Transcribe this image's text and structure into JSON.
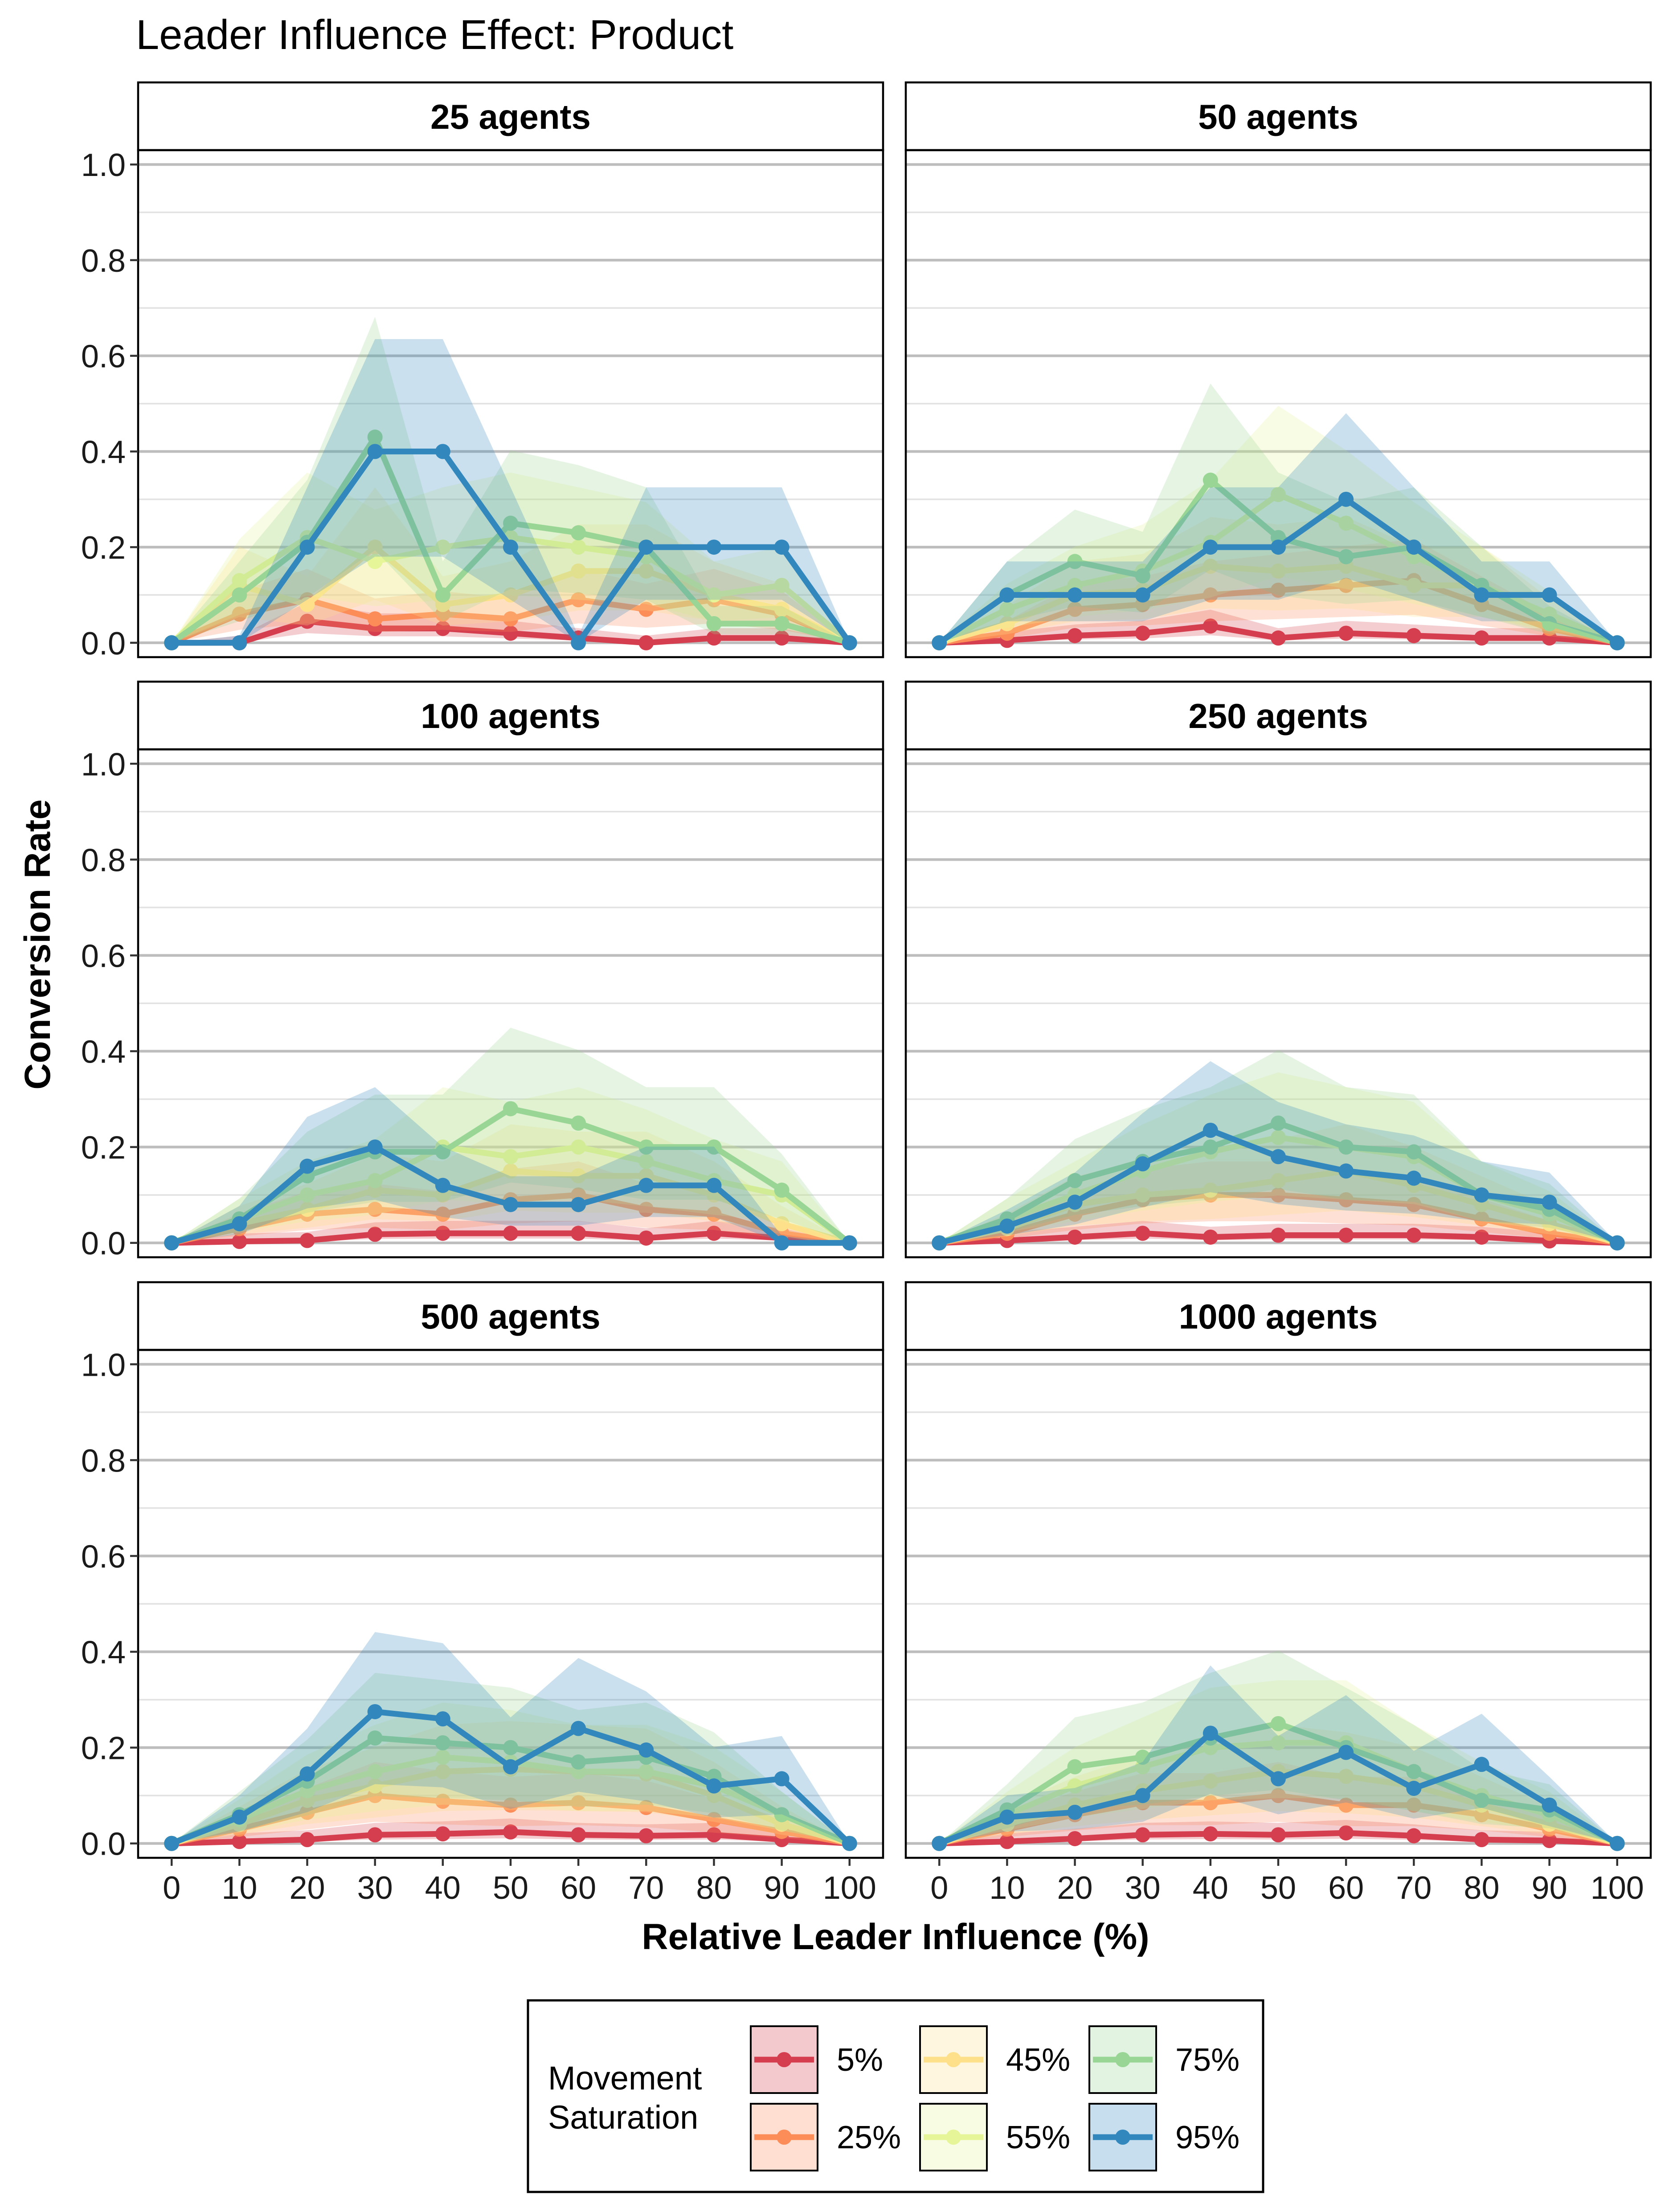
{
  "title": "Leader Influence Effect: Product",
  "xlabel": "Relative Leader Influence (%)",
  "ylabel": "Conversion Rate",
  "legend": {
    "title_line1": "Movement",
    "title_line2": "Saturation",
    "placement": "bottom"
  },
  "chart_data": {
    "type": "line",
    "title": "Leader Influence Effect: Product",
    "xlabel": "Relative Leader Influence (%)",
    "ylabel": "Conversion Rate",
    "x": [
      0,
      10,
      20,
      30,
      40,
      50,
      60,
      70,
      80,
      90,
      100
    ],
    "xticks": [
      "0",
      "10",
      "20",
      "30",
      "40",
      "50",
      "60",
      "70",
      "80",
      "90",
      "100"
    ],
    "ylim": [
      -0.03,
      1.03
    ],
    "yticks": [
      "0.0",
      "0.2",
      "0.4",
      "0.6",
      "0.8",
      "1.0"
    ],
    "grid": true,
    "legend_position": "bottom",
    "series_meta": [
      {
        "name": "5%",
        "color": "#d53e4f"
      },
      {
        "name": "25%",
        "color": "#fc8d59"
      },
      {
        "name": "45%",
        "color": "#fee08b"
      },
      {
        "name": "55%",
        "color": "#e6f598"
      },
      {
        "name": "75%",
        "color": "#99d594"
      },
      {
        "name": "95%",
        "color": "#3288bd"
      }
    ],
    "panels": [
      {
        "label": "25 agents",
        "series": [
          {
            "name": "5%",
            "values": [
              0,
              0,
              0.045,
              0.03,
              0.03,
              0.02,
              0.01,
              0,
              0.01,
              0.01,
              0
            ]
          },
          {
            "name": "25%",
            "values": [
              0,
              0.06,
              0.09,
              0.05,
              0.06,
              0.05,
              0.09,
              0.07,
              0.09,
              0.06,
              0
            ]
          },
          {
            "name": "45%",
            "values": [
              0,
              0.12,
              0.08,
              0.2,
              0.08,
              0.1,
              0.15,
              0.15,
              0.1,
              0.07,
              0
            ]
          },
          {
            "name": "55%",
            "values": [
              0,
              0.13,
              0.22,
              0.17,
              0.2,
              0.22,
              0.2,
              0.18,
              0.1,
              0.12,
              0
            ]
          },
          {
            "name": "75%",
            "values": [
              0,
              0.1,
              0.21,
              0.43,
              0.1,
              0.25,
              0.23,
              0.2,
              0.04,
              0.04,
              0
            ]
          },
          {
            "name": "95%",
            "values": [
              0,
              0,
              0.2,
              0.4,
              0.4,
              0.2,
              0,
              0.2,
              0.2,
              0.2,
              0
            ]
          }
        ]
      },
      {
        "label": "50 agents",
        "series": [
          {
            "name": "5%",
            "values": [
              0,
              0.005,
              0.015,
              0.02,
              0.035,
              0.01,
              0.02,
              0.015,
              0.01,
              0.01,
              0
            ]
          },
          {
            "name": "25%",
            "values": [
              0,
              0.02,
              0.07,
              0.08,
              0.1,
              0.11,
              0.12,
              0.13,
              0.08,
              0.03,
              0
            ]
          },
          {
            "name": "45%",
            "values": [
              0,
              0.04,
              0.1,
              0.11,
              0.16,
              0.15,
              0.16,
              0.12,
              0.12,
              0.05,
              0
            ]
          },
          {
            "name": "55%",
            "values": [
              0,
              0.07,
              0.12,
              0.15,
              0.21,
              0.31,
              0.25,
              0.18,
              0.12,
              0.06,
              0
            ]
          },
          {
            "name": "75%",
            "values": [
              0,
              0.1,
              0.17,
              0.14,
              0.34,
              0.22,
              0.18,
              0.2,
              0.12,
              0.04,
              0
            ]
          },
          {
            "name": "95%",
            "values": [
              0,
              0.1,
              0.1,
              0.1,
              0.2,
              0.2,
              0.3,
              0.2,
              0.1,
              0.1,
              0
            ]
          }
        ]
      },
      {
        "label": "100 agents",
        "series": [
          {
            "name": "5%",
            "values": [
              0,
              0.003,
              0.005,
              0.018,
              0.02,
              0.02,
              0.02,
              0.01,
              0.02,
              0.01,
              0
            ]
          },
          {
            "name": "25%",
            "values": [
              0,
              0.03,
              0.06,
              0.07,
              0.06,
              0.09,
              0.1,
              0.07,
              0.06,
              0.02,
              0
            ]
          },
          {
            "name": "45%",
            "values": [
              0,
              0.04,
              0.07,
              0.11,
              0.1,
              0.15,
              0.14,
              0.14,
              0.1,
              0.04,
              0
            ]
          },
          {
            "name": "55%",
            "values": [
              0,
              0.05,
              0.1,
              0.13,
              0.2,
              0.18,
              0.2,
              0.17,
              0.13,
              0.1,
              0
            ]
          },
          {
            "name": "75%",
            "values": [
              0,
              0.05,
              0.14,
              0.19,
              0.19,
              0.28,
              0.25,
              0.2,
              0.2,
              0.11,
              0
            ]
          },
          {
            "name": "95%",
            "values": [
              0,
              0.04,
              0.16,
              0.2,
              0.12,
              0.08,
              0.08,
              0.12,
              0.12,
              0,
              0
            ]
          }
        ]
      },
      {
        "label": "250 agents",
        "series": [
          {
            "name": "5%",
            "values": [
              0,
              0.005,
              0.012,
              0.02,
              0.012,
              0.016,
              0.016,
              0.016,
              0.012,
              0.004,
              0
            ]
          },
          {
            "name": "25%",
            "values": [
              0,
              0.02,
              0.06,
              0.09,
              0.1,
              0.1,
              0.09,
              0.08,
              0.05,
              0.02,
              0
            ]
          },
          {
            "name": "45%",
            "values": [
              0,
              0.03,
              0.08,
              0.1,
              0.11,
              0.13,
              0.15,
              0.12,
              0.08,
              0.04,
              0
            ]
          },
          {
            "name": "55%",
            "values": [
              0,
              0.05,
              0.1,
              0.15,
              0.19,
              0.22,
              0.2,
              0.18,
              0.1,
              0.06,
              0
            ]
          },
          {
            "name": "75%",
            "values": [
              0,
              0.05,
              0.13,
              0.17,
              0.2,
              0.25,
              0.2,
              0.19,
              0.1,
              0.07,
              0
            ]
          },
          {
            "name": "95%",
            "values": [
              0,
              0.035,
              0.085,
              0.165,
              0.235,
              0.18,
              0.15,
              0.135,
              0.1,
              0.085,
              0
            ]
          }
        ]
      },
      {
        "label": "500 agents",
        "series": [
          {
            "name": "5%",
            "values": [
              0,
              0.004,
              0.008,
              0.018,
              0.02,
              0.024,
              0.018,
              0.016,
              0.018,
              0.008,
              0
            ]
          },
          {
            "name": "25%",
            "values": [
              0,
              0.03,
              0.065,
              0.1,
              0.088,
              0.08,
              0.085,
              0.075,
              0.05,
              0.025,
              0
            ]
          },
          {
            "name": "45%",
            "values": [
              0,
              0.04,
              0.09,
              0.12,
              0.15,
              0.155,
              0.15,
              0.145,
              0.1,
              0.04,
              0
            ]
          },
          {
            "name": "55%",
            "values": [
              0,
              0.05,
              0.11,
              0.15,
              0.18,
              0.17,
              0.15,
              0.15,
              0.12,
              0.06,
              0
            ]
          },
          {
            "name": "75%",
            "values": [
              0,
              0.06,
              0.13,
              0.22,
              0.21,
              0.2,
              0.17,
              0.18,
              0.14,
              0.06,
              0
            ]
          },
          {
            "name": "95%",
            "values": [
              0,
              0.055,
              0.145,
              0.275,
              0.26,
              0.16,
              0.24,
              0.195,
              0.12,
              0.135,
              0
            ]
          }
        ]
      },
      {
        "label": "1000 agents",
        "series": [
          {
            "name": "5%",
            "values": [
              0,
              0.004,
              0.01,
              0.018,
              0.02,
              0.018,
              0.022,
              0.016,
              0.008,
              0.006,
              0
            ]
          },
          {
            "name": "25%",
            "values": [
              0,
              0.03,
              0.06,
              0.085,
              0.085,
              0.1,
              0.08,
              0.08,
              0.06,
              0.03,
              0
            ]
          },
          {
            "name": "45%",
            "values": [
              0,
              0.04,
              0.08,
              0.11,
              0.13,
              0.15,
              0.14,
              0.12,
              0.08,
              0.04,
              0
            ]
          },
          {
            "name": "55%",
            "values": [
              0,
              0.06,
              0.12,
              0.16,
              0.2,
              0.21,
              0.21,
              0.15,
              0.1,
              0.06,
              0
            ]
          },
          {
            "name": "75%",
            "values": [
              0,
              0.07,
              0.16,
              0.18,
              0.22,
              0.25,
              0.2,
              0.15,
              0.09,
              0.07,
              0
            ]
          },
          {
            "name": "95%",
            "values": [
              0,
              0.055,
              0.065,
              0.1,
              0.23,
              0.135,
              0.19,
              0.115,
              0.165,
              0.08,
              0
            ]
          }
        ]
      }
    ]
  }
}
